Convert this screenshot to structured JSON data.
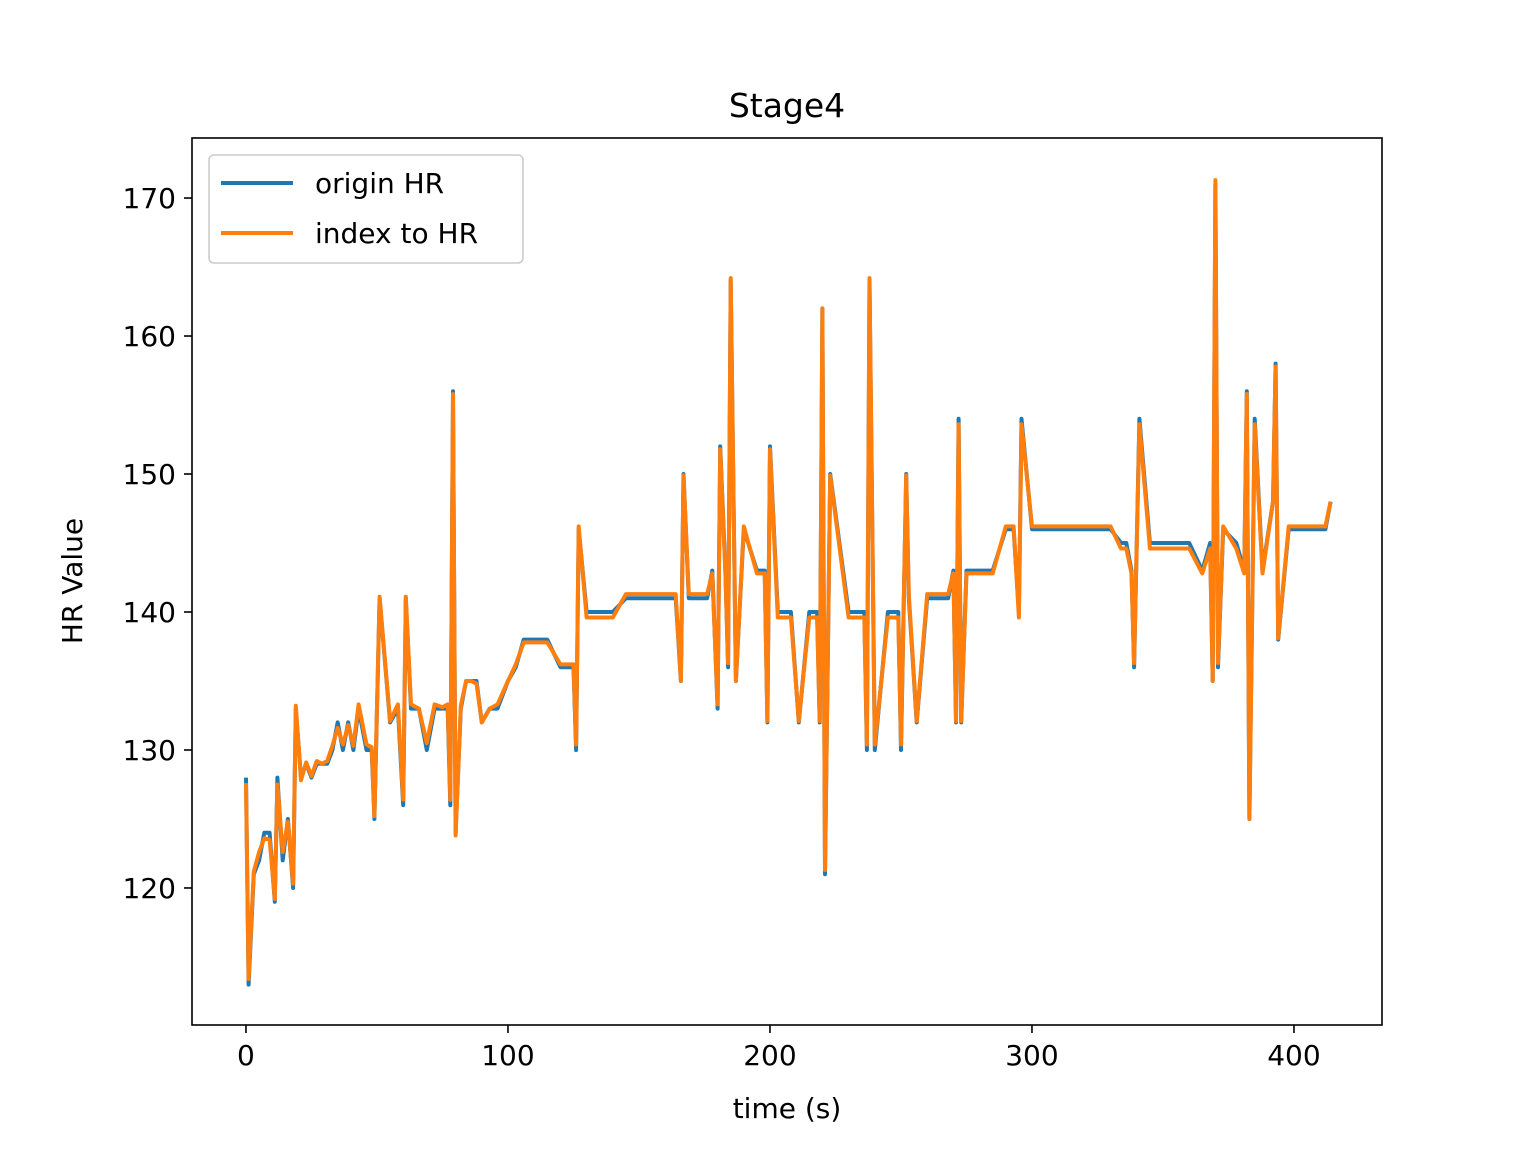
{
  "chart_data": {
    "type": "line",
    "title": "Stage4",
    "xlabel": "time (s)",
    "ylabel": "HR Value",
    "x": [
      0,
      1,
      3,
      5,
      7,
      9,
      11,
      12,
      14,
      16,
      18,
      19,
      21,
      23,
      25,
      27,
      29,
      31,
      33,
      35,
      37,
      39,
      41,
      43,
      46,
      48,
      49,
      51,
      55,
      58,
      60,
      61,
      63,
      66,
      69,
      72,
      75,
      77,
      78,
      79,
      80,
      82,
      84,
      86,
      88,
      90,
      93,
      96,
      100,
      103,
      106,
      110,
      115,
      120,
      125,
      126,
      127,
      130,
      135,
      140,
      145,
      150,
      155,
      160,
      164,
      166,
      167,
      169,
      172,
      176,
      178,
      180,
      181,
      183,
      184,
      185,
      187,
      190,
      195,
      198,
      199,
      200,
      203,
      208,
      211,
      215,
      218,
      219,
      220,
      221,
      223,
      230,
      236,
      237,
      238,
      240,
      245,
      249,
      250,
      252,
      253,
      256,
      260,
      265,
      268,
      270,
      271,
      272,
      273,
      275,
      280,
      285,
      290,
      293,
      295,
      296,
      300,
      310,
      320,
      330,
      334,
      336,
      338,
      339,
      341,
      345,
      350,
      355,
      360,
      365,
      368,
      369,
      370,
      371,
      373,
      378,
      381,
      382,
      383,
      385,
      388,
      392,
      393,
      394,
      398,
      405,
      410,
      412,
      414
    ],
    "series": [
      {
        "name": "origin HR",
        "color": "#1f77b4",
        "values": [
          128,
          113,
          121,
          122,
          124,
          124,
          119,
          128,
          122,
          125,
          120,
          133,
          128,
          129,
          128,
          129,
          129,
          129,
          130,
          132,
          130,
          132,
          130,
          133,
          130,
          130,
          125,
          141,
          132,
          133,
          126,
          141,
          133,
          133,
          130,
          133,
          133,
          133,
          126,
          156,
          124,
          133,
          135,
          135,
          135,
          132,
          133,
          133,
          135,
          136,
          138,
          138,
          138,
          136,
          136,
          130,
          146,
          140,
          140,
          140,
          141,
          141,
          141,
          141,
          141,
          135,
          150,
          141,
          141,
          141,
          143,
          133,
          152,
          143,
          136,
          164,
          135,
          146,
          143,
          143,
          132,
          152,
          140,
          140,
          132,
          140,
          140,
          132,
          162,
          121,
          150,
          140,
          140,
          130,
          164,
          130,
          140,
          140,
          130,
          150,
          141,
          132,
          141,
          141,
          141,
          143,
          132,
          154,
          132,
          143,
          143,
          143,
          146,
          146,
          140,
          154,
          146,
          146,
          146,
          146,
          145,
          145,
          143,
          136,
          154,
          145,
          145,
          145,
          145,
          143,
          145,
          135,
          171,
          136,
          146,
          145,
          143,
          156,
          125,
          154,
          143,
          148,
          158,
          138,
          146,
          146,
          146,
          146,
          148
        ]
      },
      {
        "name": "index to HR",
        "color": "#ff7f0e",
        "values": [
          127.6,
          113.4,
          121.2,
          122.6,
          123.6,
          123.5,
          119.2,
          127.5,
          122.6,
          124.8,
          120.3,
          133.2,
          127.8,
          129.1,
          128.1,
          129.2,
          129.0,
          129.2,
          130.3,
          131.6,
          130.4,
          131.8,
          130.3,
          133.3,
          130.4,
          130.2,
          125.2,
          141.1,
          132.1,
          133.3,
          126.4,
          141.1,
          133.3,
          133.0,
          130.5,
          133.3,
          133.1,
          133.3,
          126.4,
          155.8,
          123.8,
          133.2,
          135.0,
          135.0,
          134.8,
          132.0,
          133.0,
          133.3,
          135.0,
          136.2,
          137.8,
          137.8,
          137.8,
          136.2,
          136.2,
          130.4,
          146.2,
          139.6,
          139.6,
          139.6,
          141.3,
          141.3,
          141.3,
          141.3,
          141.3,
          135.0,
          149.9,
          141.3,
          141.3,
          141.3,
          142.8,
          133.3,
          151.8,
          142.8,
          136.3,
          164.2,
          135.0,
          146.2,
          142.8,
          142.8,
          132.1,
          151.8,
          139.6,
          139.6,
          132.1,
          139.6,
          139.6,
          132.1,
          162.0,
          121.3,
          149.9,
          139.6,
          139.6,
          130.4,
          164.2,
          130.4,
          139.6,
          139.6,
          130.4,
          149.9,
          141.3,
          132.1,
          141.3,
          141.3,
          141.3,
          142.8,
          132.1,
          153.6,
          132.1,
          142.8,
          142.8,
          142.8,
          146.2,
          146.2,
          139.6,
          153.6,
          146.2,
          146.2,
          146.2,
          146.2,
          144.6,
          144.6,
          142.8,
          136.3,
          153.6,
          144.6,
          144.6,
          144.6,
          144.6,
          142.8,
          144.6,
          135.0,
          171.3,
          136.3,
          146.2,
          144.6,
          142.8,
          155.8,
          125.0,
          153.6,
          142.8,
          148.0,
          157.8,
          138.1,
          146.2,
          146.2,
          146.2,
          146.2,
          148.0
        ]
      }
    ],
    "xlim": [
      -20.6,
      433.6
    ],
    "ylim": [
      110.07,
      174.35
    ],
    "xticks": [
      0,
      100,
      200,
      300,
      400
    ],
    "yticks": [
      120,
      130,
      140,
      150,
      160,
      170
    ],
    "legend": "upper left"
  }
}
